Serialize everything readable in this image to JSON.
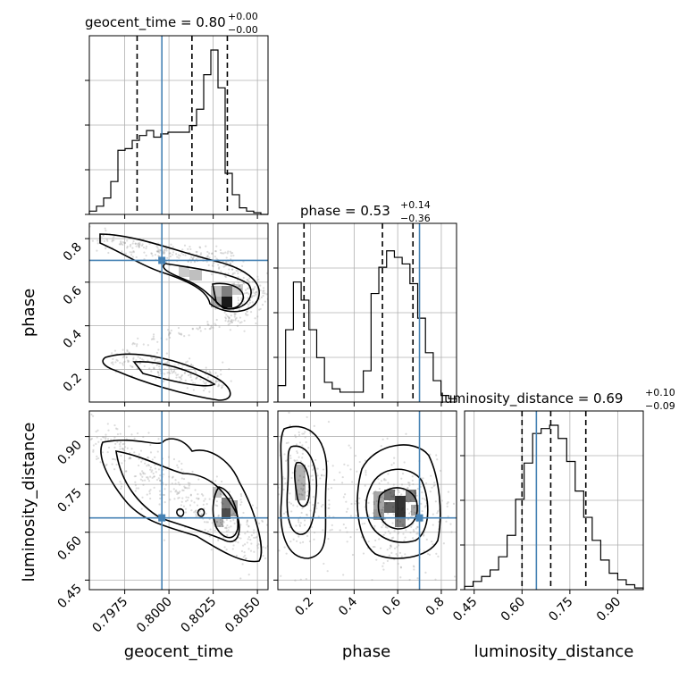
{
  "chart_data": {
    "type": "corner",
    "parameters": [
      {
        "name": "geocent_time",
        "range": [
          0.7955,
          0.8056
        ],
        "ticks": [
          0.7975,
          0.8,
          0.8025,
          0.805
        ],
        "tick_labels": [
          "0.7975",
          "0.8000",
          "0.8025",
          "0.8050"
        ],
        "median": "0.80",
        "plus": "+0.00",
        "minus": "−0.00",
        "title_prefix": "geocent_time = ",
        "quantiles": [
          0.7982,
          0.8013,
          0.8033
        ],
        "truth": 0.7996,
        "hist_values": [
          0.02,
          0.05,
          0.1,
          0.2,
          0.39,
          0.4,
          0.45,
          0.48,
          0.51,
          0.47,
          0.49,
          0.5,
          0.5,
          0.5,
          0.54,
          0.64,
          0.85,
          1.0,
          0.77,
          0.25,
          0.12,
          0.04,
          0.02,
          0.01,
          0.0
        ]
      },
      {
        "name": "phase",
        "range": [
          0.05,
          0.87
        ],
        "ticks": [
          0.2,
          0.4,
          0.6,
          0.8
        ],
        "tick_labels": [
          "0.2",
          "0.4",
          "0.6",
          "0.8"
        ],
        "median": "0.53",
        "plus": "+0.14",
        "minus": "−0.36",
        "title_prefix": "phase = ",
        "quantiles": [
          0.17,
          0.53,
          0.67
        ],
        "truth": 0.7,
        "hist_values": [
          0.1,
          0.44,
          0.73,
          0.62,
          0.44,
          0.27,
          0.12,
          0.08,
          0.06,
          0.06,
          0.06,
          0.19,
          0.66,
          0.82,
          0.92,
          0.88,
          0.84,
          0.72,
          0.51,
          0.3,
          0.13,
          0.04,
          0.02
        ]
      },
      {
        "name": "luminosity_distance",
        "range": [
          0.42,
          0.98
        ],
        "ticks": [
          0.45,
          0.6,
          0.75,
          0.9
        ],
        "tick_labels": [
          "0.45",
          "0.60",
          "0.75",
          "0.90"
        ],
        "median": "0.69",
        "plus": "+0.10",
        "minus": "−0.09",
        "title_prefix": "luminosity_distance = ",
        "quantiles": [
          0.6,
          0.69,
          0.8
        ],
        "truth": 0.645,
        "hist_values": [
          0.02,
          0.05,
          0.08,
          0.12,
          0.2,
          0.33,
          0.55,
          0.77,
          0.95,
          0.98,
          1.0,
          0.92,
          0.78,
          0.6,
          0.44,
          0.3,
          0.18,
          0.1,
          0.06,
          0.03,
          0.01
        ]
      }
    ],
    "grid": true,
    "truth_color": "#4682b4",
    "quantile_style": "dashed",
    "contour_color": "#000000",
    "density_color": "#000000"
  }
}
